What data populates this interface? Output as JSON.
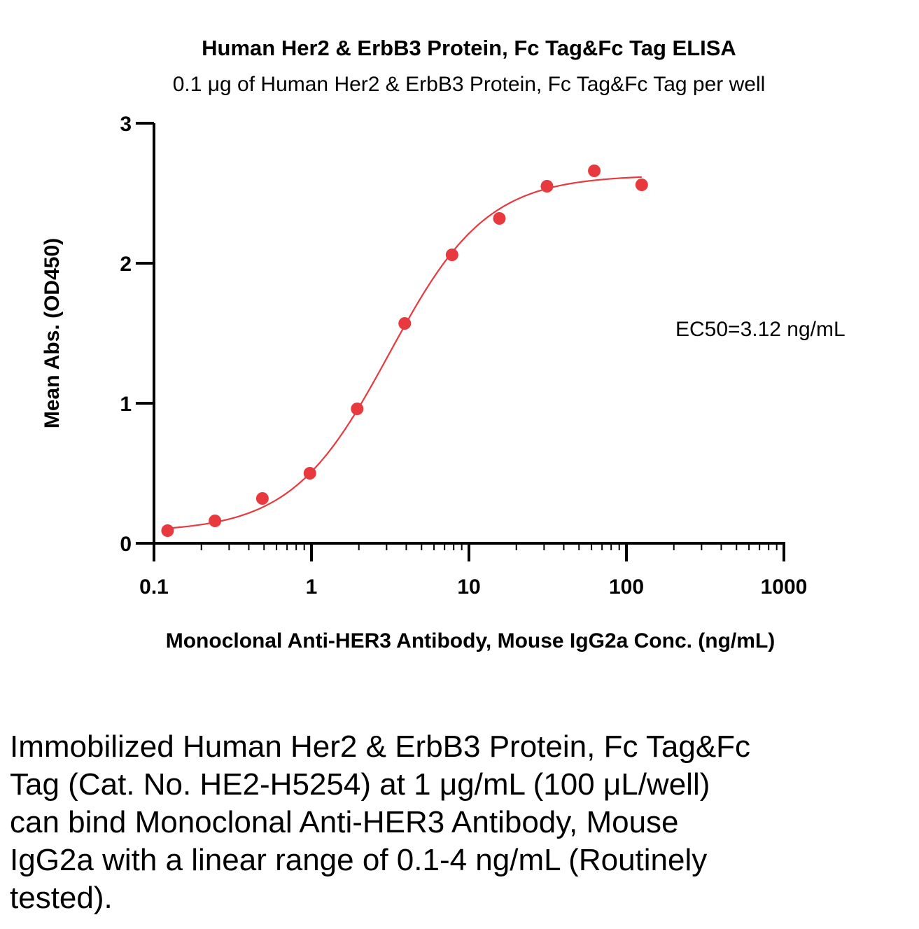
{
  "chart_data": {
    "type": "scatter",
    "title": "Human Her2 & ErbB3 Protein, Fc Tag&Fc Tag ELISA",
    "subtitle": "0.1 μg of Human Her2 & ErbB3 Protein, Fc Tag&Fc Tag per well",
    "xlabel": "Monoclonal Anti-HER3 Antibody, Mouse IgG2a Conc. (ng/mL)",
    "ylabel": "Mean Abs. (OD450)",
    "x_scale": "log",
    "xlim": [
      0.1,
      1000
    ],
    "ylim": [
      0,
      3
    ],
    "x_ticks": [
      0.1,
      1,
      10,
      100,
      1000
    ],
    "x_tick_labels": [
      "0.1",
      "1",
      "10",
      "100",
      "1000"
    ],
    "y_ticks": [
      0,
      1,
      2,
      3
    ],
    "y_tick_labels": [
      "0",
      "1",
      "2",
      "3"
    ],
    "grid": false,
    "color": "#e8393f",
    "annotation": "EC50=3.12  ng/mL",
    "series": [
      {
        "x": [
          0.122,
          0.244,
          0.488,
          0.977,
          1.95,
          3.91,
          7.81,
          15.6,
          31.3,
          62.5,
          125
        ],
        "y": [
          0.09,
          0.16,
          0.32,
          0.5,
          0.96,
          1.57,
          2.06,
          2.32,
          2.55,
          2.66,
          2.56
        ],
        "fit": "4PL",
        "fit_params": {
          "bottom": 0.08,
          "top": 2.63,
          "ec50": 3.12,
          "hill": 1.4
        }
      }
    ]
  },
  "caption": "Immobilized Human Her2 & ErbB3 Protein, Fc Tag&Fc Tag (Cat. No. HE2-H5254) at 1 μg/mL (100 μL/well) can bind Monoclonal Anti-HER3 Antibody, Mouse IgG2a with a linear range of 0.1-4 ng/mL (Routinely tested)."
}
